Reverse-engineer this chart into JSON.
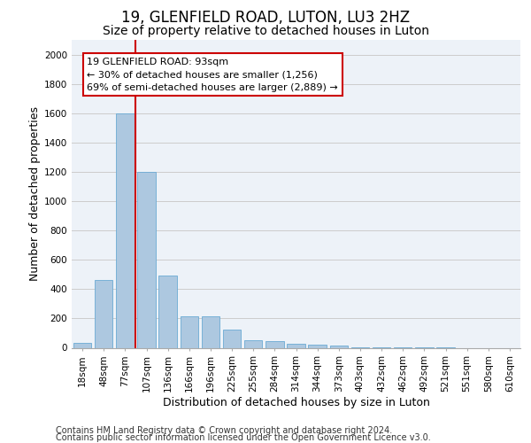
{
  "title1": "19, GLENFIELD ROAD, LUTON, LU3 2HZ",
  "title2": "Size of property relative to detached houses in Luton",
  "xlabel": "Distribution of detached houses by size in Luton",
  "ylabel": "Number of detached properties",
  "footer1": "Contains HM Land Registry data © Crown copyright and database right 2024.",
  "footer2": "Contains public sector information licensed under the Open Government Licence v3.0.",
  "bar_labels": [
    "18sqm",
    "48sqm",
    "77sqm",
    "107sqm",
    "136sqm",
    "166sqm",
    "196sqm",
    "225sqm",
    "255sqm",
    "284sqm",
    "314sqm",
    "344sqm",
    "373sqm",
    "403sqm",
    "432sqm",
    "462sqm",
    "492sqm",
    "521sqm",
    "551sqm",
    "580sqm",
    "610sqm"
  ],
  "bar_values": [
    35,
    460,
    1600,
    1200,
    490,
    215,
    215,
    125,
    50,
    45,
    30,
    20,
    15,
    5,
    3,
    2,
    1,
    1,
    0,
    0,
    0
  ],
  "bar_color": "#adc8e0",
  "bar_edge_color": "#6aaad4",
  "vline_color": "#cc0000",
  "vline_x": 2.5,
  "annotation_line1": "19 GLENFIELD ROAD: 93sqm",
  "annotation_line2": "← 30% of detached houses are smaller (1,256)",
  "annotation_line3": "69% of semi-detached houses are larger (2,889) →",
  "annotation_box_edgecolor": "#cc0000",
  "ylim": [
    0,
    2100
  ],
  "yticks": [
    0,
    200,
    400,
    600,
    800,
    1000,
    1200,
    1400,
    1600,
    1800,
    2000
  ],
  "grid_color": "#cccccc",
  "bg_color": "#edf2f8",
  "title1_fontsize": 12,
  "title2_fontsize": 10,
  "axis_label_fontsize": 9,
  "tick_fontsize": 7.5,
  "footer_fontsize": 7,
  "annot_fontsize": 8
}
